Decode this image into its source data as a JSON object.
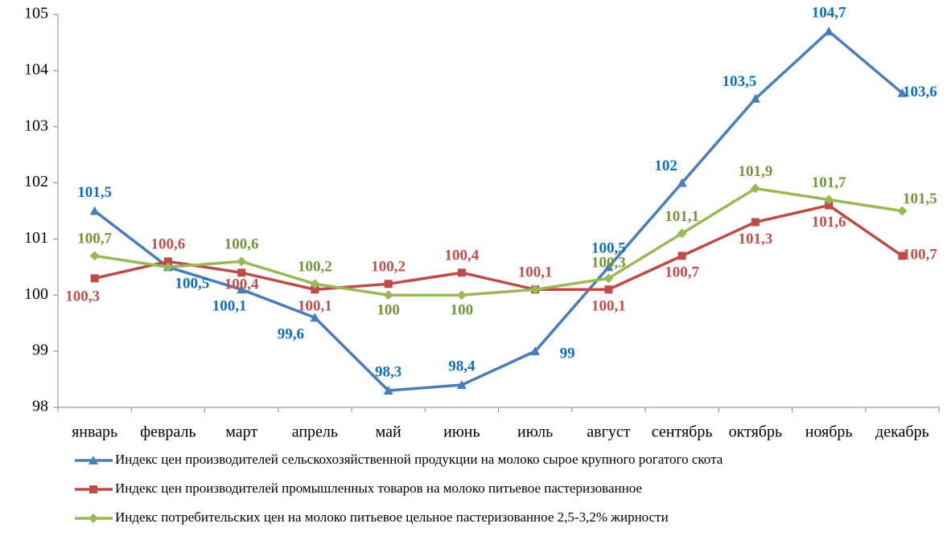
{
  "chart_data": {
    "type": "line",
    "categories": [
      "январь",
      "февраль",
      "март",
      "апрель",
      "май",
      "июнь",
      "июль",
      "август",
      "сентябрь",
      "октябрь",
      "ноябрь",
      "декабрь"
    ],
    "series": [
      {
        "name": "Индекс цен производителей сельскохозяйственной продукции на молоко сырое крупного рогатого скота",
        "color": "#4a7ebb",
        "marker": "triangle",
        "label_color": "#0e6fc1",
        "values": [
          101.5,
          100.5,
          100.1,
          99.6,
          98.3,
          98.4,
          99,
          100.5,
          102,
          103.5,
          104.7,
          103.6
        ],
        "value_labels": [
          "101,5",
          "100,5",
          "100,1",
          "99,6",
          "98,3",
          "98,4",
          "99",
          "100,5",
          "102",
          "103,5",
          "104,7",
          "103,6"
        ]
      },
      {
        "name": "Индекс цен производителей промышленных товаров на молоко питьевое пастеризованное",
        "color": "#be4b48",
        "marker": "square",
        "label_color": "#c0504d",
        "values": [
          100.3,
          100.6,
          100.4,
          100.1,
          100.2,
          100.4,
          100.1,
          100.1,
          100.7,
          101.3,
          101.6,
          100.7
        ],
        "value_labels": [
          "100,3",
          "100,6",
          "100,4",
          "100,1",
          "100,2",
          "100,4",
          "100,1",
          "100,1",
          "100,7",
          "101,3",
          "101,6",
          "100,7"
        ]
      },
      {
        "name": "Индекс потребительских цен на молоко питьевое цельное пастеризованное 2,5-3,2% жирности",
        "color": "#98b954",
        "marker": "diamond",
        "label_color": "#77933c",
        "values": [
          100.7,
          100.5,
          100.6,
          100.2,
          100,
          100,
          100.1,
          100.3,
          101.1,
          101.9,
          101.7,
          101.5
        ],
        "value_labels": [
          "100,7",
          null,
          "100,6",
          "100,2",
          "100",
          "100",
          null,
          "100,3",
          "101,1",
          "101,9",
          "101,7",
          "101,5"
        ]
      }
    ],
    "ylim": [
      98,
      105
    ],
    "yticks": [
      98,
      99,
      100,
      101,
      102,
      103,
      104,
      105
    ],
    "grid": false,
    "legend": "bottom"
  }
}
